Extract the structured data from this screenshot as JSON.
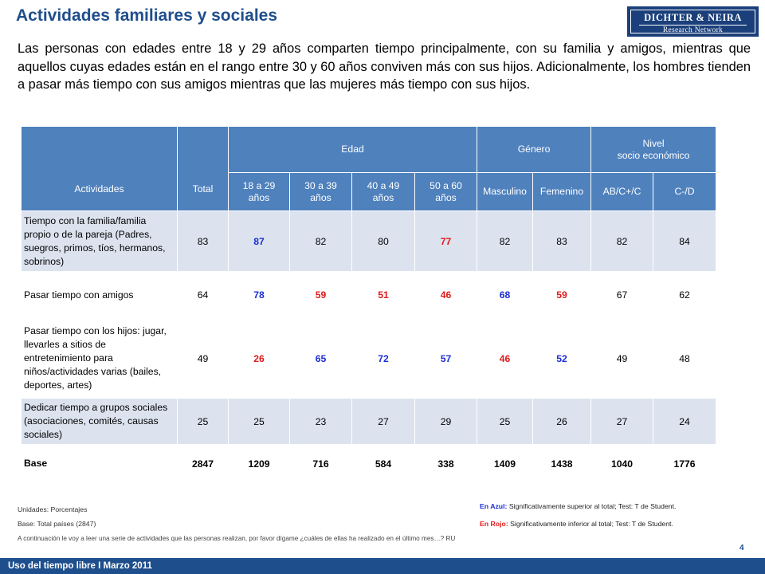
{
  "title": "Actividades familiares y sociales",
  "logo": {
    "line1": "DICHTER & NEIRA",
    "line2": "Research Network"
  },
  "intro": "Las personas con edades entre 18 y 29 años comparten tiempo principalmente, con su familia y amigos, mientras que aquellos cuyas edades están en el rango entre 30 y 60 años conviven más con sus hijos. Adicionalmente, los hombres tienden a pasar más tiempo con sus amigos mientras que las mujeres más tiempo con sus hijos.",
  "table": {
    "headers": {
      "actividades": "Actividades",
      "total": "Total",
      "edad": "Edad",
      "genero": "Género",
      "nivel": "Nivel\nsocio económico",
      "sub": [
        "18 a 29\naños",
        "30 a 39\naños",
        "40 a 49\naños",
        "50 a 60\naños",
        "Masculino",
        "Femenino",
        "AB/C+/C",
        "C-/D"
      ]
    },
    "rows": [
      {
        "label": "Tiempo con la familia/familia propio o de la pareja (Padres, suegros, primos, tíos, hermanos, sobrinos)",
        "values": [
          "83",
          "87",
          "82",
          "80",
          "77",
          "82",
          "83",
          "82",
          "84"
        ],
        "significance": [
          "none",
          "up",
          "none",
          "none",
          "down",
          "none",
          "none",
          "none",
          "none"
        ]
      },
      {
        "label": "Pasar tiempo con amigos",
        "values": [
          "64",
          "78",
          "59",
          "51",
          "46",
          "68",
          "59",
          "67",
          "62"
        ],
        "significance": [
          "none",
          "up",
          "down",
          "down",
          "down",
          "up",
          "down",
          "none",
          "none"
        ]
      },
      {
        "label": "Pasar tiempo con los hijos: jugar, llevarles a sitios de entretenimiento para niños/actividades varias (bailes, deportes, artes)",
        "values": [
          "49",
          "26",
          "65",
          "72",
          "57",
          "46",
          "52",
          "49",
          "48"
        ],
        "significance": [
          "none",
          "down",
          "up",
          "up",
          "up",
          "down",
          "up",
          "none",
          "none"
        ]
      },
      {
        "label": "Dedicar tiempo a grupos sociales (asociaciones, comités, causas sociales)",
        "values": [
          "25",
          "25",
          "23",
          "27",
          "29",
          "25",
          "26",
          "27",
          "24"
        ],
        "significance": [
          "none",
          "none",
          "none",
          "none",
          "none",
          "none",
          "none",
          "none",
          "none"
        ]
      }
    ],
    "base": {
      "label": "Base",
      "values": [
        "2847",
        "1209",
        "716",
        "584",
        "338",
        "1409",
        "1438",
        "1040",
        "1776"
      ]
    }
  },
  "notes": {
    "units": "Unidades: Porcentajes",
    "base": "Base:  Total países (2847)",
    "question": "A continuación le voy a leer una serie de actividades que las personas realizan, por favor dígame ¿cuáles de ellas ha realizado en el último mes…? RU",
    "legend_blue_key": "En Azul:",
    "legend_blue_text": " Significativamente superior al total; Test: T de Student.",
    "legend_red_key": "En Rojo:",
    "legend_red_text": " Significativamente inferior al total; Test: T de Student."
  },
  "footer": {
    "text": "Uso del tiempo libre  I  Marzo  2011",
    "page": "4"
  },
  "colors": {
    "header_blue": "#4f81bd",
    "row_alt": "#dce3ef",
    "sig_up": "#1c2fd4",
    "sig_down": "#e01b1b",
    "footer": "#1e4f8c"
  }
}
